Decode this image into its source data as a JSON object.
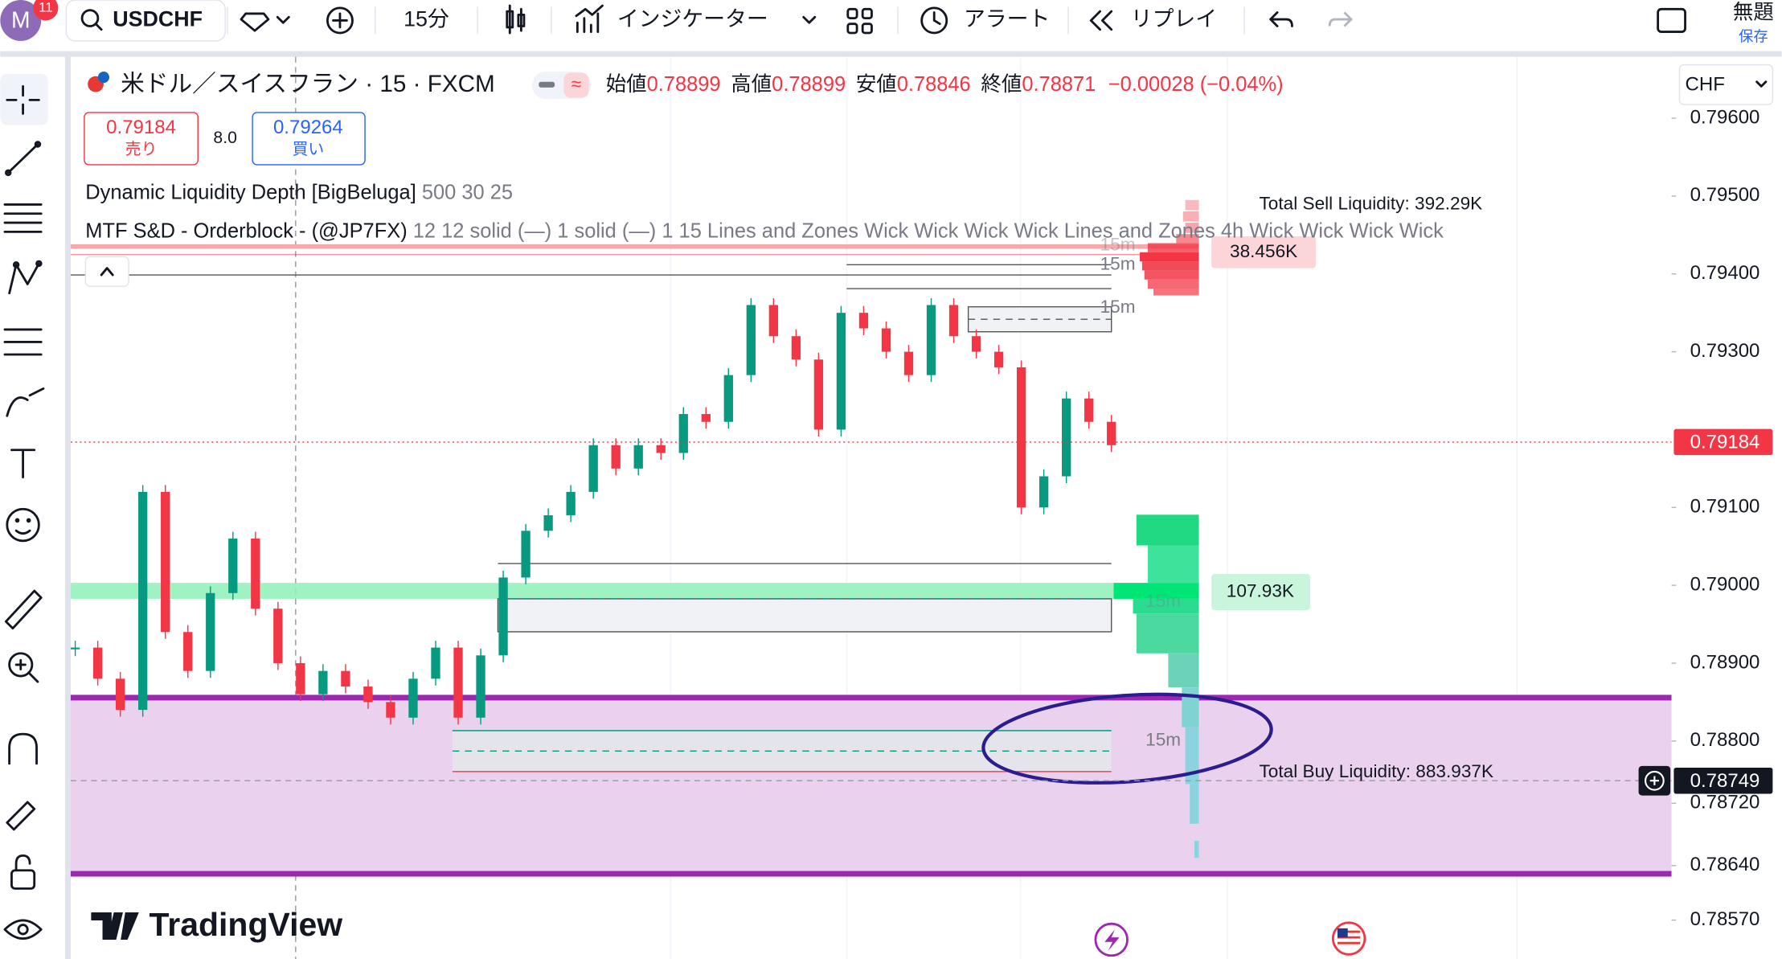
{
  "toolbar": {
    "avatar": "M",
    "badge": "11",
    "symbol": "USDCHF",
    "interval": "15分",
    "indicators": "インジケーター",
    "alert": "アラート",
    "replay": "リプレイ",
    "layout_name": "無題",
    "save": "保存"
  },
  "header": {
    "title": "米ドル／スイスフラン · 15 · FXCM",
    "ohlc": [
      {
        "label": "始値",
        "value": "0.78899"
      },
      {
        "label": "高値",
        "value": "0.78899"
      },
      {
        "label": "安値",
        "value": "0.78846"
      },
      {
        "label": "終値",
        "value": "0.78871"
      }
    ],
    "change": "−0.00028 (−0.04%)",
    "currency": "CHF"
  },
  "trade": {
    "sell_price": "0.79184",
    "sell_label": "売り",
    "spread": "8.0",
    "buy_price": "0.79264",
    "buy_label": "買い"
  },
  "indicators": [
    {
      "name": "Dynamic Liquidity Depth [BigBeluga]",
      "params": "500 30 25"
    },
    {
      "name": "MTF S&D - Orderblock - (@JP7FX)",
      "params": "12 12 solid (—) 1 solid (—) 1 15 Lines and Zones Wick Wick Wick Wick Lines and Zones 4h Wick Wick Wick Wick"
    }
  ],
  "annotations": {
    "total_sell": "Total Sell Liquidity: 392.29K",
    "sell_level": "38.456K",
    "buy_level": "107.93K",
    "total_buy": "Total Buy Liquidity: 883.937K",
    "timeframe": "15m"
  },
  "chart_data": {
    "type": "candlestick",
    "closes": [
      0.7892,
      0.7888,
      0.7884,
      0.7912,
      0.7894,
      0.7889,
      0.7899,
      0.7906,
      0.7897,
      0.789,
      0.7886,
      0.7889,
      0.7887,
      0.7885,
      0.7883,
      0.7888,
      0.7892,
      0.7883,
      0.7891,
      0.7901,
      0.7907,
      0.7909,
      0.7912,
      0.7918,
      0.7915,
      0.7918,
      0.7917,
      0.7922,
      0.7921,
      0.7927,
      0.7936,
      0.7932,
      0.7929,
      0.792,
      0.7935,
      0.7933,
      0.793,
      0.7927,
      0.7936,
      0.7932,
      0.793,
      0.7928,
      0.791,
      0.7914,
      0.7924,
      0.7921,
      0.7918
    ],
    "ylim": [
      0.7852,
      0.7968
    ],
    "yticks": [
      {
        "value": 0.796,
        "label": "0.79600"
      },
      {
        "value": 0.795,
        "label": "0.79500"
      },
      {
        "value": 0.794,
        "label": "0.79400"
      },
      {
        "value": 0.793,
        "label": "0.79300"
      },
      {
        "value": 0.791,
        "label": "0.79100"
      },
      {
        "value": 0.79,
        "label": "0.79000"
      },
      {
        "value": 0.789,
        "label": "0.78900"
      },
      {
        "value": 0.788,
        "label": "0.78800"
      },
      {
        "value": 0.7872,
        "label": "0.78720"
      },
      {
        "value": 0.7864,
        "label": "0.78640"
      },
      {
        "value": 0.7857,
        "label": "0.78570"
      }
    ],
    "last_price": {
      "value": 0.79184,
      "label": "0.79184"
    },
    "crosshair_price": {
      "value": 0.78749,
      "label": "0.78749"
    },
    "colors": {
      "up": "#089981",
      "down": "#f23645",
      "last": "#f23645"
    }
  },
  "watermark": "TradingView"
}
